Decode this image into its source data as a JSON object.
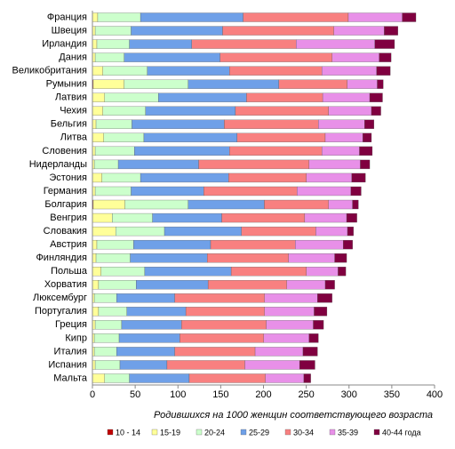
{
  "chart_data": {
    "type": "stacked-barh",
    "xlabel": "Родившихся на 1000 женщин соответствующего возраста",
    "categories": [
      "Франция",
      "Швеция",
      "Ирландия",
      "Дания",
      "Великобритания",
      "Румыния",
      "Латвия",
      "Чехия",
      "Бельгия",
      "Литва",
      "Словения",
      "Нидерланды",
      "Эстония",
      "Германия",
      "Болгария",
      "Венгрия",
      "Словакия",
      "Австрия",
      "Финляндия",
      "Польша",
      "Хорватия",
      "Люксембург",
      "Португалия",
      "Греция",
      "Кипр",
      "Италия",
      "Испания",
      "Мальта"
    ],
    "series": [
      {
        "name": "10 - 14",
        "color": "#c00000",
        "values": [
          0.2,
          0.2,
          0.2,
          0.2,
          0.2,
          1,
          0.2,
          0.2,
          0.2,
          0.2,
          0.2,
          0.2,
          0.2,
          0.2,
          1,
          0.2,
          0.2,
          0.2,
          0.2,
          0.2,
          0.2,
          0.2,
          0.2,
          0.2,
          0.2,
          0.2,
          0.2,
          0.2
        ]
      },
      {
        "name": "15-19",
        "color": "#ffff99",
        "values": [
          6,
          3,
          5,
          3,
          12,
          36,
          14,
          12,
          4,
          13,
          3,
          2,
          11,
          3,
          37,
          23,
          27,
          5,
          4,
          10,
          7,
          2,
          7,
          3,
          2,
          2,
          3,
          14
        ]
      },
      {
        "name": "20-24",
        "color": "#ccffcc",
        "values": [
          50,
          42,
          38,
          34,
          52,
          75,
          63,
          50,
          42,
          47,
          46,
          28,
          45,
          42,
          74,
          47,
          57,
          43,
          40,
          51,
          44,
          26,
          33,
          31,
          29,
          26,
          29,
          29
        ]
      },
      {
        "name": "25-29",
        "color": "#6fa0e8",
        "values": [
          120,
          107,
          73,
          112,
          96,
          106,
          103,
          105,
          108,
          109,
          111,
          94,
          103,
          85,
          89,
          81,
          90,
          90,
          90,
          101,
          84,
          68,
          69,
          70,
          71,
          68,
          55,
          70
        ]
      },
      {
        "name": "30-34",
        "color": "#f88080",
        "values": [
          123,
          130,
          122,
          131,
          108,
          80,
          89,
          109,
          110,
          103,
          108,
          129,
          91,
          109,
          75,
          97,
          87,
          99,
          95,
          88,
          92,
          105,
          92,
          99,
          98,
          94,
          91,
          89
        ]
      },
      {
        "name": "35-39",
        "color": "#e890e8",
        "values": [
          63,
          59,
          92,
          55,
          64,
          35,
          55,
          50,
          54,
          44,
          44,
          60,
          53,
          63,
          28,
          49,
          37,
          56,
          54,
          37,
          45,
          62,
          58,
          55,
          53,
          56,
          64,
          45
        ]
      },
      {
        "name": "40-44 года",
        "color": "#800040",
        "values": [
          16,
          16,
          23,
          14,
          16,
          7,
          15,
          11,
          11,
          10,
          15,
          11,
          16,
          12,
          7,
          12,
          7,
          11,
          14,
          9,
          11,
          17,
          15,
          12,
          11,
          17,
          18,
          8
        ]
      }
    ],
    "xlim": [
      0,
      400
    ],
    "xticks": [
      0,
      50,
      100,
      150,
      200,
      250,
      300,
      350,
      400
    ]
  }
}
